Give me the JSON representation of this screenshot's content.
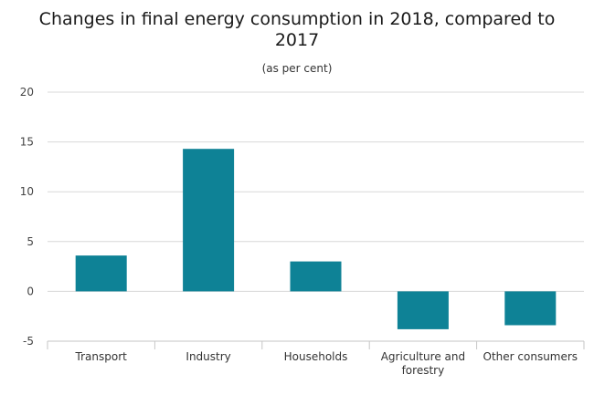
{
  "chart_data": {
    "type": "bar",
    "title_lines": [
      "Changes in final energy consumption in 2018, compared to",
      "2017"
    ],
    "subtitle": "(as per cent)",
    "xlabel": "",
    "ylabel": "",
    "categories": [
      "Transport",
      "Industry",
      "Households",
      "Agriculture and forestry",
      "Other consumers"
    ],
    "category_label_lines": [
      [
        "Transport"
      ],
      [
        "Industry"
      ],
      [
        "Households"
      ],
      [
        "Agriculture and",
        "forestry"
      ],
      [
        "Other consumers"
      ]
    ],
    "values": [
      3.6,
      14.3,
      3.0,
      -3.8,
      -3.4
    ],
    "ylim": [
      -5,
      20
    ],
    "yticks": [
      "20",
      "15",
      "10",
      "5",
      "0",
      "-5"
    ],
    "grid": true,
    "legend": "none",
    "colors": {
      "bar": "#0e8296",
      "grid": "#d8d8d8",
      "axis": "#c6c6c6"
    }
  }
}
